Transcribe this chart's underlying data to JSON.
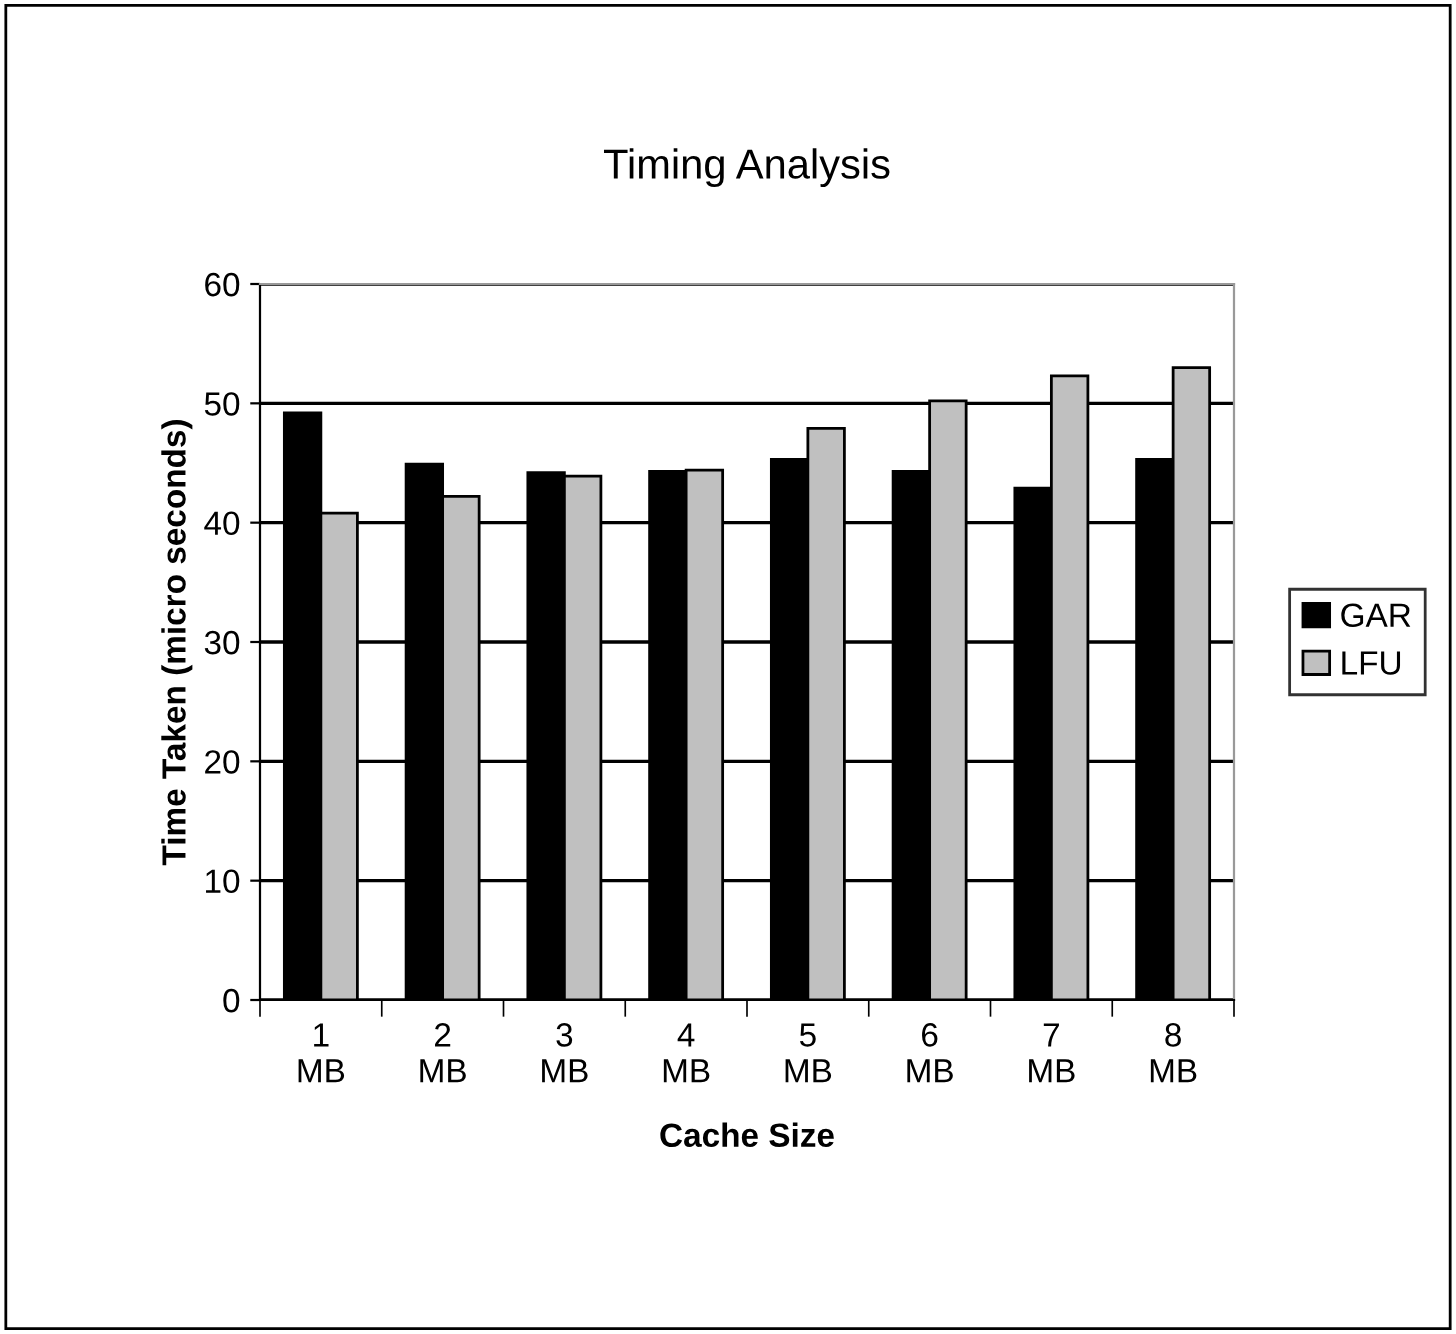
{
  "chart_data": {
    "type": "bar",
    "title": "Timing Analysis",
    "xlabel": "Cache Size",
    "ylabel": "Time Taken (micro seconds)",
    "categories": [
      "1\nMB",
      "2\nMB",
      "3\nMB",
      "4\nMB",
      "5\nMB",
      "6\nMB",
      "7\nMB",
      "8\nMB"
    ],
    "series": [
      {
        "name": "GAR",
        "color": "#000000",
        "values": [
          49.2,
          44.9,
          44.2,
          44.3,
          45.3,
          44.3,
          42.9,
          45.3
        ]
      },
      {
        "name": "LFU",
        "color": "#c0c0c0",
        "values": [
          40.8,
          42.2,
          43.9,
          44.4,
          47.9,
          50.2,
          52.3,
          53.0
        ]
      }
    ],
    "ylim": [
      0,
      60
    ],
    "yticks": [
      0,
      10,
      20,
      30,
      40,
      50,
      60
    ],
    "grid": "y",
    "legend": "right"
  }
}
